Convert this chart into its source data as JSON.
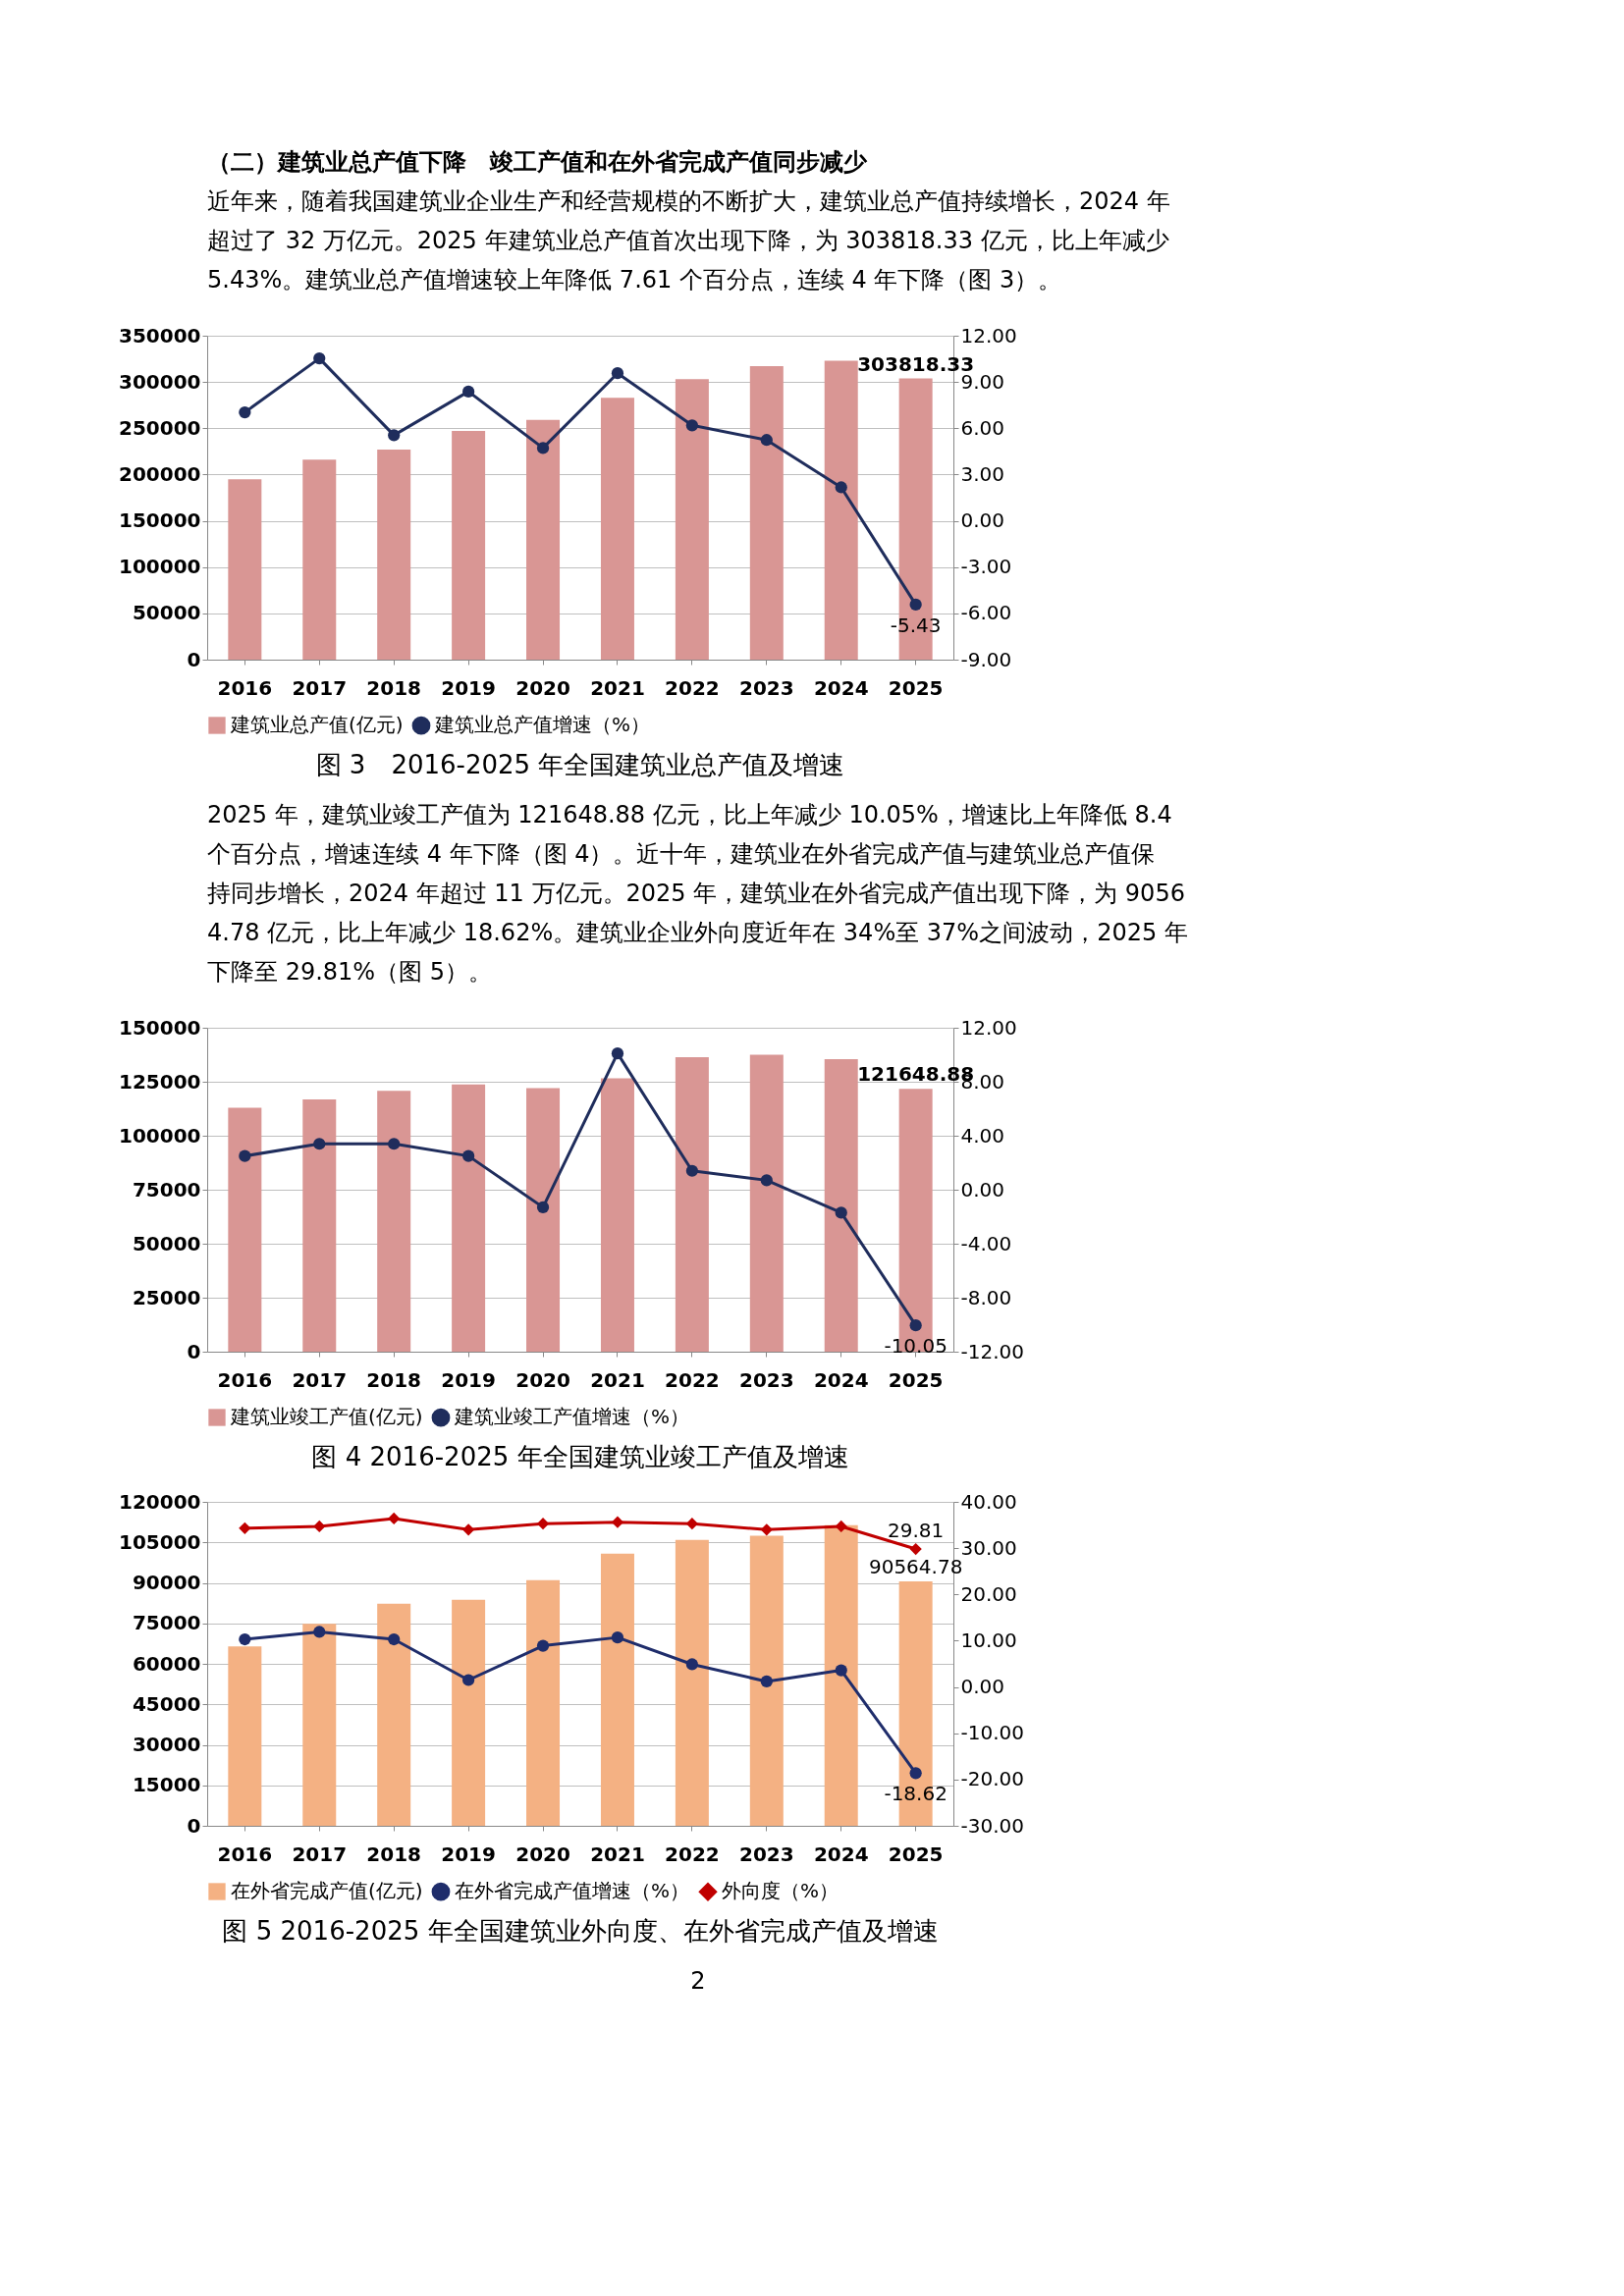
{
  "chart_data": [
    {
      "type": "bar",
      "title": "图 3　2016-2025 年全国建筑业总产值及增速",
      "categories": [
        "2016",
        "2017",
        "2018",
        "2019",
        "2020",
        "2021",
        "2022",
        "2023",
        "2024",
        "2025"
      ],
      "series": [
        {
          "name": "建筑业总产值(亿元)",
          "color": "#d99694",
          "values": [
            195000,
            216000,
            227000,
            247000,
            259000,
            283000,
            303000,
            317000,
            323000,
            303818.33
          ],
          "value_labels": [
            null,
            null,
            null,
            null,
            null,
            null,
            null,
            null,
            null,
            "303818.33"
          ]
        },
        {
          "name": "建筑业总产值增速（%）",
          "type": "line",
          "axis": "y2",
          "marker": "circle",
          "color": "#1f2d5c",
          "values": [
            7.03,
            10.53,
            5.55,
            8.38,
            4.72,
            9.57,
            6.19,
            5.24,
            2.17,
            -5.43
          ],
          "value_labels": [
            null,
            null,
            null,
            null,
            null,
            null,
            null,
            null,
            null,
            "-5.43"
          ]
        }
      ],
      "ylim": [
        0,
        350000
      ],
      "yticks": [
        0,
        50000,
        100000,
        150000,
        200000,
        250000,
        300000,
        350000
      ],
      "y2lim": [
        -9,
        12
      ],
      "y2ticks": [
        {
          "value": -9,
          "label": "-9.00"
        },
        {
          "value": -6,
          "label": "-6.00"
        },
        {
          "value": -3,
          "label": "-3.00"
        },
        {
          "value": 0,
          "label": "0.00"
        },
        {
          "value": 3,
          "label": "3.00"
        },
        {
          "value": 6,
          "label": "6.00"
        },
        {
          "value": 9,
          "label": "9.00"
        },
        {
          "value": 12,
          "label": "12.00"
        }
      ],
      "grid": "y",
      "legend": "bottom",
      "annotations": [
        "（二）建筑业总产值下降　竣工产值和在外省完成产值同步减少",
        "近年来，随着我国建筑业企业生产和经营规模的不断扩大，建筑业总产值持续增长，2024 年超过了 32 万亿元。2025 年建筑业总产值首次出现下降，为 303818.33 亿元，比上年减少 5.43%。建筑业总产值增速较上年降低 7.61 个百分点，连续 4 年下降（图 3）。"
      ]
    },
    {
      "type": "bar",
      "title": "图 4 2016-2025 年全国建筑业竣工产值及增速",
      "categories": [
        "2016",
        "2017",
        "2018",
        "2019",
        "2020",
        "2021",
        "2022",
        "2023",
        "2024",
        "2025"
      ],
      "series": [
        {
          "name": "建筑业竣工产值(亿元)",
          "color": "#d99694",
          "values": [
            113000,
            116800,
            120800,
            123700,
            122000,
            126600,
            136400,
            137500,
            135500,
            121648.88
          ],
          "value_labels": [
            null,
            null,
            null,
            null,
            null,
            null,
            null,
            null,
            null,
            "121648.88"
          ]
        },
        {
          "name": "建筑业竣工产值增速（%）",
          "type": "line",
          "axis": "y2",
          "marker": "circle",
          "color": "#1f2d5c",
          "values": [
            2.5,
            3.4,
            3.4,
            2.5,
            -1.3,
            10.1,
            1.4,
            0.7,
            -1.7,
            -10.05
          ],
          "value_labels": [
            null,
            null,
            null,
            null,
            null,
            null,
            null,
            null,
            null,
            "-10.05"
          ]
        }
      ],
      "ylim": [
        0,
        150000
      ],
      "yticks": [
        0,
        25000,
        50000,
        75000,
        100000,
        125000,
        150000
      ],
      "y2lim": [
        -12,
        12
      ],
      "y2ticks": [
        {
          "value": -12,
          "label": "-12.00"
        },
        {
          "value": -8,
          "label": "-8.00"
        },
        {
          "value": -4,
          "label": "-4.00"
        },
        {
          "value": 0,
          "label": "0.00"
        },
        {
          "value": 4,
          "label": "4.00"
        },
        {
          "value": 8,
          "label": "8.00"
        },
        {
          "value": 12,
          "label": "12.00"
        }
      ],
      "grid": "y",
      "legend": "bottom",
      "annotations": [
        "2025 年，建筑业竣工产值为 121648.88 亿元，比上年减少 10.05%，增速比上年降低 8.4 个百分点，增速连续 4 年下降（图 4）。近十年，建筑业在外省完成产值与建筑业总产值保持同步增长，2024 年超过 11 万亿元。2025 年，建筑业在外省完成产值出现下降，为 90564.78 亿元，比上年减少 18.62%。建筑业企业外向度近年在 34%至 37%之间波动，2025 年下降至 29.81%（图 5）。"
      ]
    },
    {
      "type": "bar",
      "title": "图 5 2016-2025 年全国建筑业外向度、在外省完成产值及增速",
      "categories": [
        "2016",
        "2017",
        "2018",
        "2019",
        "2020",
        "2021",
        "2022",
        "2023",
        "2024",
        "2025"
      ],
      "series": [
        {
          "name": "在外省完成产值(亿元)",
          "color": "#f4b183",
          "values": [
            66500,
            74800,
            82300,
            83700,
            91000,
            100800,
            105900,
            107500,
            111400,
            90564.78
          ],
          "value_labels": [
            null,
            null,
            null,
            null,
            null,
            null,
            null,
            null,
            null,
            "90564.78"
          ]
        },
        {
          "name": "在外省完成产值增速（%）",
          "type": "line",
          "axis": "y2",
          "marker": "circle",
          "color": "#1f2d6b",
          "values": [
            10.3,
            11.9,
            10.3,
            1.5,
            8.9,
            10.7,
            4.9,
            1.2,
            3.6,
            -18.62
          ],
          "value_labels": [
            null,
            null,
            null,
            null,
            null,
            null,
            null,
            null,
            null,
            "-18.62"
          ]
        },
        {
          "name": "外向度（%）",
          "type": "line",
          "axis": "y2",
          "marker": "diamond",
          "color": "#c00000",
          "values": [
            34.3,
            34.7,
            36.4,
            34.0,
            35.3,
            35.6,
            35.3,
            34.0,
            34.7,
            29.81
          ],
          "value_labels": [
            null,
            null,
            null,
            null,
            null,
            null,
            null,
            null,
            null,
            "29.81"
          ]
        }
      ],
      "ylim": [
        0,
        120000
      ],
      "yticks": [
        0,
        15000,
        30000,
        45000,
        60000,
        75000,
        90000,
        105000,
        120000
      ],
      "y2lim": [
        -30,
        40
      ],
      "y2ticks": [
        {
          "value": -30,
          "label": "-30.00"
        },
        {
          "value": -20,
          "label": "-20.00"
        },
        {
          "value": -10,
          "label": "-10.00"
        },
        {
          "value": 0,
          "label": "0.00"
        },
        {
          "value": 10,
          "label": "10.00"
        },
        {
          "value": 20,
          "label": "20.00"
        },
        {
          "value": 30,
          "label": "30.00"
        },
        {
          "value": 40,
          "label": "40.00"
        }
      ],
      "grid": "y",
      "legend": "bottom",
      "annotations": [
        "2"
      ]
    }
  ]
}
